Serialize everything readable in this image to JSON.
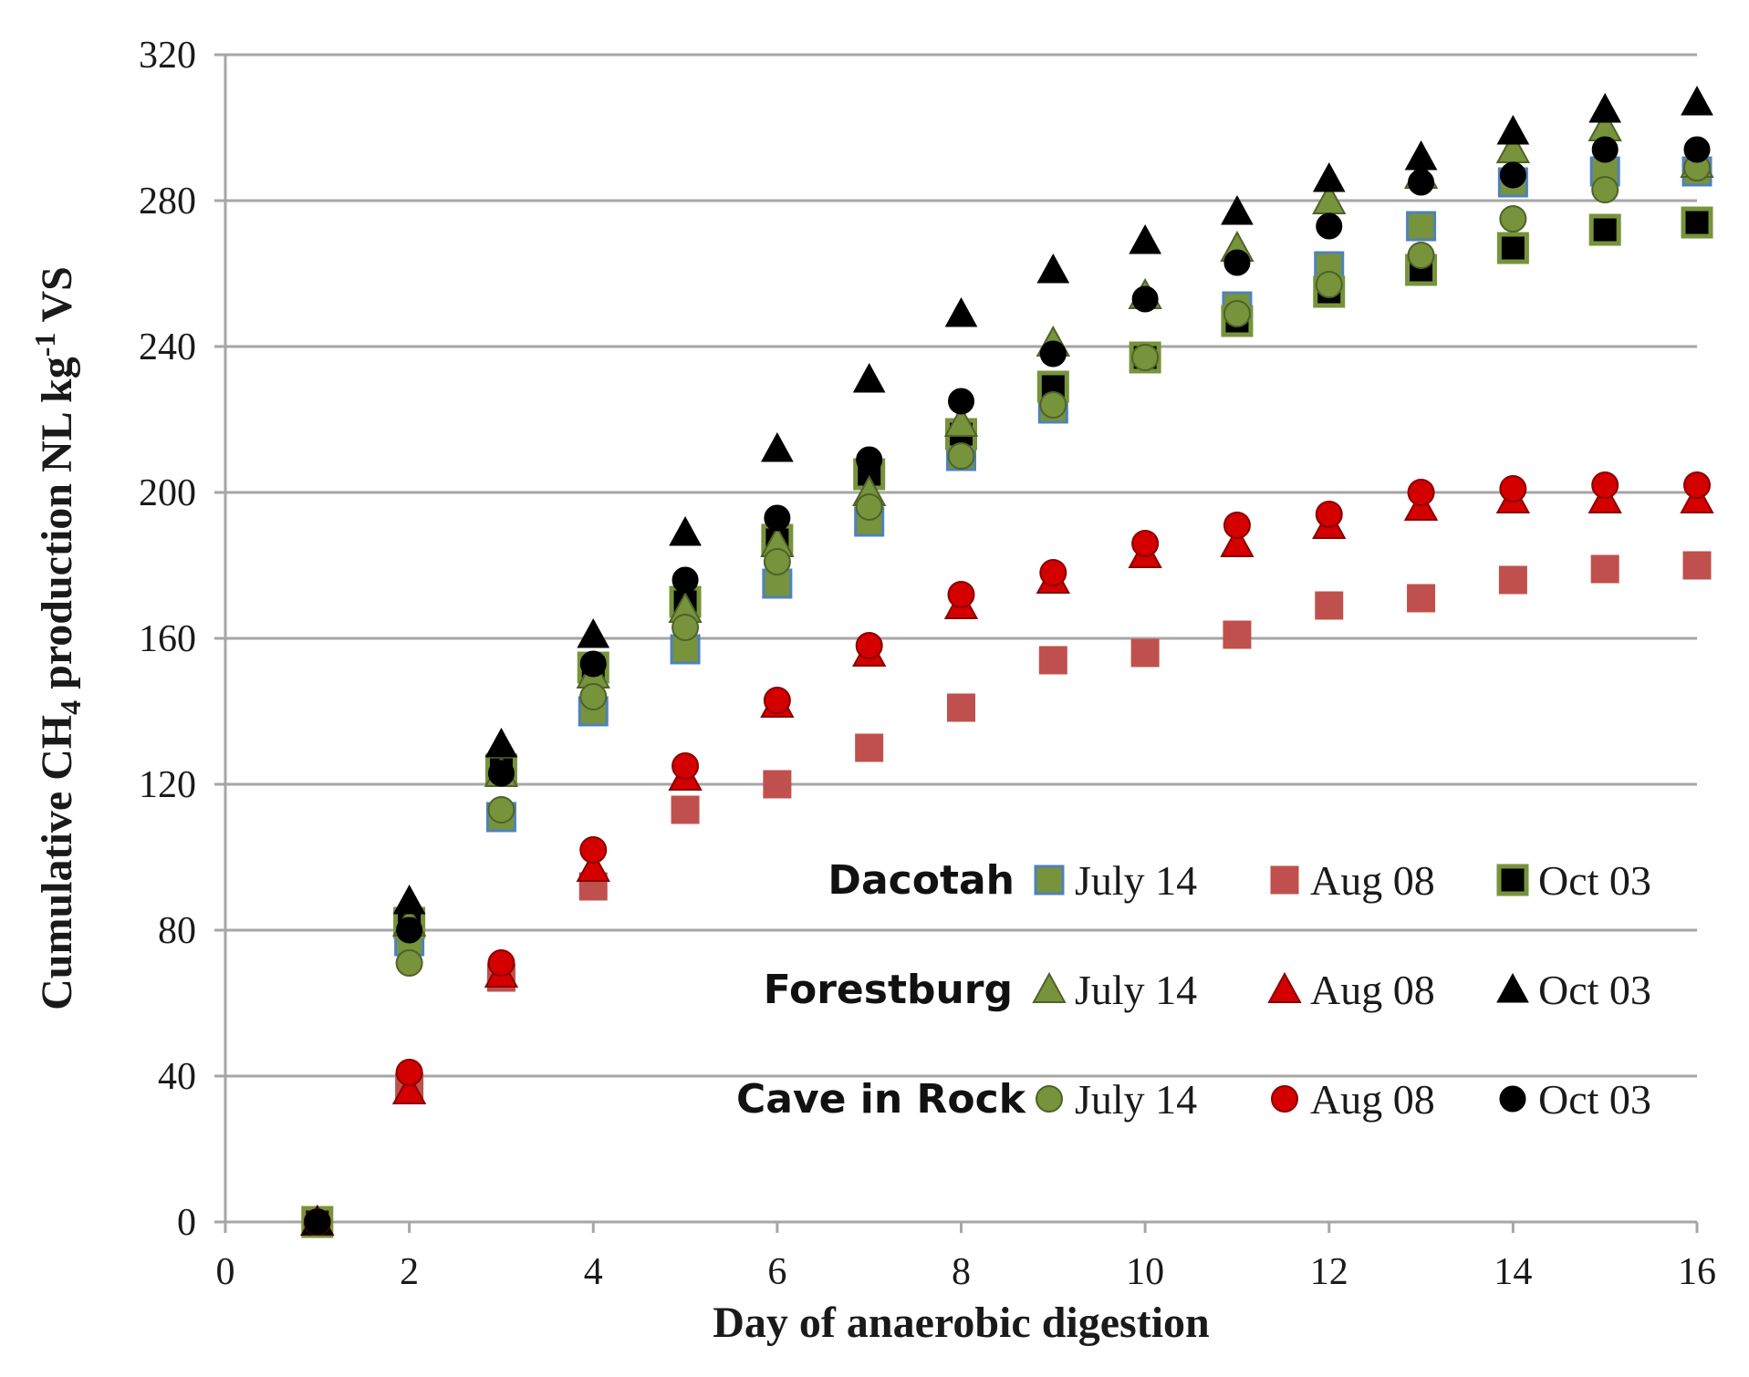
{
  "chart_data": {
    "type": "scatter",
    "title": "",
    "xlabel": "Day of anaerobic digestion",
    "ylabel": {
      "prefix": "Cumulative CH",
      "sub": "4",
      "middle": " production NL kg",
      "sup": "-1",
      "suffix": " VS"
    },
    "xlim": [
      0,
      16
    ],
    "ylim": [
      0,
      320
    ],
    "xticks": [
      0,
      2,
      4,
      6,
      8,
      10,
      12,
      14,
      16
    ],
    "yticks": [
      0,
      40,
      80,
      120,
      160,
      200,
      240,
      280,
      320
    ],
    "grid": "horizontal",
    "legend_position": "lower-right",
    "x": [
      1,
      2,
      3,
      4,
      5,
      6,
      7,
      8,
      9,
      10,
      11,
      12,
      13,
      14,
      15,
      16
    ],
    "colors": {
      "green": "#77933c",
      "green_edge": "#4f6228",
      "blue_edge": "#4f81bd",
      "light_red": "#c0504d",
      "red": "#d40000",
      "red_edge": "#8b0000",
      "black": "#000000",
      "grid": "#a6a6a6"
    },
    "series": [
      {
        "name": "Dacotah July 14",
        "marker": "square",
        "style": "green-blue",
        "values": [
          0,
          77,
          111,
          140,
          157,
          175,
          192,
          210,
          223,
          237,
          251,
          262,
          273,
          285,
          288,
          288
        ]
      },
      {
        "name": "Dacotah Aug 08",
        "marker": "square",
        "style": "lightred",
        "values": [
          0,
          37,
          67,
          92,
          113,
          120,
          130,
          141,
          154,
          156,
          161,
          169,
          171,
          176,
          179,
          180
        ]
      },
      {
        "name": "Dacotah Oct 03",
        "marker": "square",
        "style": "black-green",
        "values": [
          0,
          82,
          124,
          152,
          170,
          187,
          205,
          216,
          229,
          237,
          247,
          255,
          261,
          267,
          272,
          274
        ]
      },
      {
        "name": "Forestburg July 14",
        "marker": "triangle",
        "style": "green",
        "values": [
          0,
          82,
          123,
          150,
          168,
          186,
          200,
          219,
          241,
          254,
          267,
          280,
          287,
          294,
          300,
          290
        ]
      },
      {
        "name": "Forestburg Aug 08",
        "marker": "triangle",
        "style": "red",
        "values": [
          0,
          36,
          68,
          97,
          122,
          142,
          156,
          169,
          176,
          183,
          186,
          191,
          196,
          198,
          198,
          198
        ]
      },
      {
        "name": "Forestburg Oct 03",
        "marker": "triangle",
        "style": "black",
        "values": [
          0,
          88,
          131,
          161,
          189,
          212,
          231,
          249,
          261,
          269,
          277,
          286,
          292,
          299,
          305,
          307
        ]
      },
      {
        "name": "Cave in Rock July 14",
        "marker": "circle",
        "style": "green",
        "values": [
          0,
          71,
          113,
          144,
          163,
          181,
          196,
          210,
          224,
          237,
          249,
          257,
          265,
          275,
          283,
          289
        ]
      },
      {
        "name": "Cave in Rock Aug 08",
        "marker": "circle",
        "style": "red",
        "values": [
          0,
          41,
          71,
          102,
          125,
          143,
          158,
          172,
          178,
          186,
          191,
          194,
          200,
          201,
          202,
          202
        ]
      },
      {
        "name": "Cave in Rock Oct 03",
        "marker": "circle",
        "style": "black",
        "values": [
          0,
          80,
          123,
          153,
          176,
          193,
          209,
          225,
          238,
          253,
          263,
          273,
          285,
          287,
          294,
          294
        ]
      }
    ],
    "legend": {
      "rows": [
        {
          "group": "Dacotah",
          "marker": "square",
          "items": [
            {
              "label": "July 14",
              "style": "green-blue"
            },
            {
              "label": "Aug 08",
              "style": "lightred"
            },
            {
              "label": "Oct 03",
              "style": "black-green"
            }
          ]
        },
        {
          "group": "Forestburg",
          "marker": "triangle",
          "items": [
            {
              "label": "July 14",
              "style": "green"
            },
            {
              "label": "Aug 08",
              "style": "red"
            },
            {
              "label": "Oct 03",
              "style": "black"
            }
          ]
        },
        {
          "group": "Cave in Rock",
          "marker": "circle",
          "items": [
            {
              "label": "July 14",
              "style": "green"
            },
            {
              "label": "Aug 08",
              "style": "red"
            },
            {
              "label": "Oct 03",
              "style": "black"
            }
          ]
        }
      ]
    }
  }
}
